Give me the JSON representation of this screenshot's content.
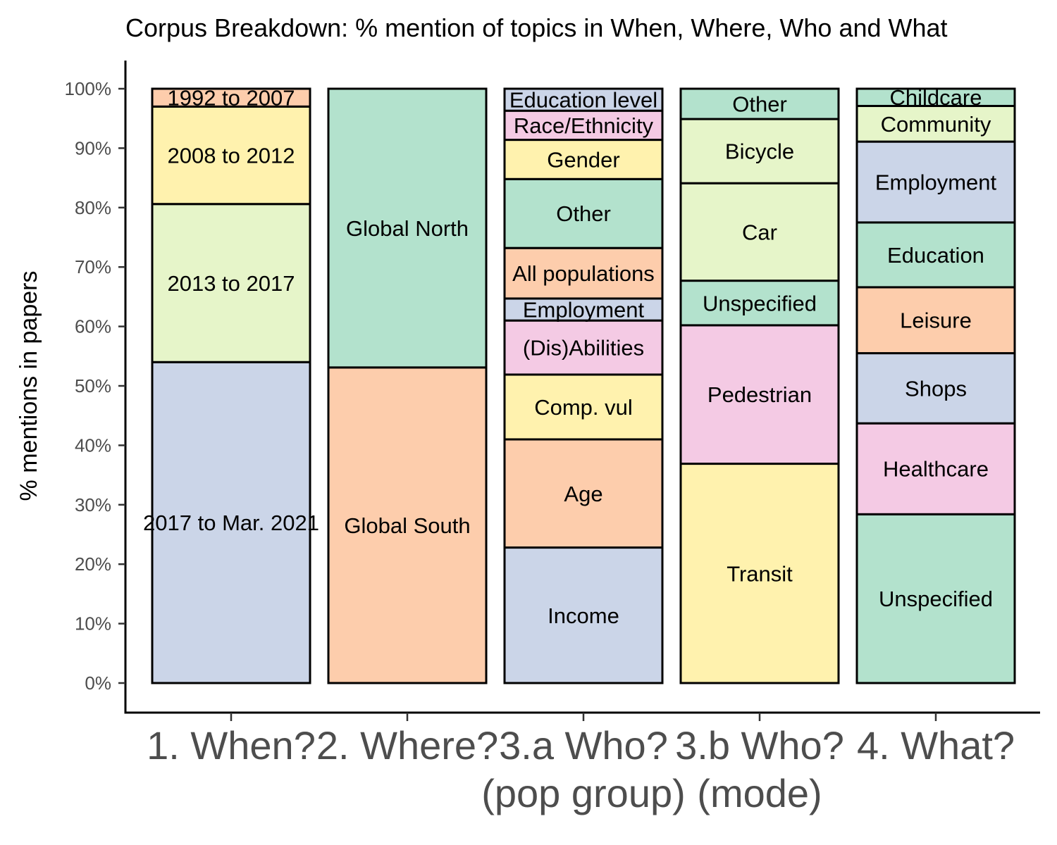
{
  "chart_data": {
    "type": "bar",
    "stacked": true,
    "title": "Corpus Breakdown: % mention of topics in When, Where, Who and What",
    "xlabel": "",
    "ylabel": "% mentions in papers",
    "ylim": [
      0,
      100
    ],
    "yticks": [
      "0%",
      "10%",
      "20%",
      "30%",
      "40%",
      "50%",
      "60%",
      "70%",
      "80%",
      "90%",
      "100%"
    ],
    "grid": false,
    "legend": "none",
    "categories": [
      [
        "1. When?"
      ],
      [
        "2. Where?"
      ],
      [
        "3.a Who?",
        "(pop group)"
      ],
      [
        "3.b Who?",
        "(mode)"
      ],
      [
        "4. What?"
      ]
    ],
    "bars": [
      {
        "segments": [
          {
            "label": "2017 to Mar. 2021",
            "value": 54.0,
            "color": "#cbd5e8"
          },
          {
            "label": "2013 to 2017",
            "value": 26.6,
            "color": "#e6f5c9"
          },
          {
            "label": "2008 to 2012",
            "value": 16.4,
            "color": "#fff2ae"
          },
          {
            "label": "1992 to 2007",
            "value": 3.0,
            "color": "#fdcdac"
          }
        ]
      },
      {
        "segments": [
          {
            "label": "Global South",
            "value": 53.1,
            "color": "#fdcdac"
          },
          {
            "label": "Global North",
            "value": 46.9,
            "color": "#b3e2cd"
          }
        ]
      },
      {
        "segments": [
          {
            "label": "Income",
            "value": 22.8,
            "color": "#cbd5e8"
          },
          {
            "label": "Age",
            "value": 18.2,
            "color": "#fdcdac"
          },
          {
            "label": "Comp. vul",
            "value": 10.9,
            "color": "#fff2ae"
          },
          {
            "label": "(Dis)Abilities",
            "value": 9.1,
            "color": "#f4cae4"
          },
          {
            "label": "Employment",
            "value": 3.7,
            "color": "#cbd5e8"
          },
          {
            "label": "All populations",
            "value": 8.5,
            "color": "#fdcdac"
          },
          {
            "label": "Other",
            "value": 11.6,
            "color": "#b3e2cd"
          },
          {
            "label": "Gender",
            "value": 6.6,
            "color": "#fff2ae"
          },
          {
            "label": "Race/Ethnicity",
            "value": 4.9,
            "color": "#f4cae4"
          },
          {
            "label": "Education level",
            "value": 3.7,
            "color": "#cbd5e8"
          }
        ]
      },
      {
        "segments": [
          {
            "label": "Transit",
            "value": 36.9,
            "color": "#fff2ae"
          },
          {
            "label": "Pedestrian",
            "value": 23.3,
            "color": "#f4cae4"
          },
          {
            "label": "Unspecified",
            "value": 7.5,
            "color": "#b3e2cd"
          },
          {
            "label": "Car",
            "value": 16.4,
            "color": "#e6f5c9"
          },
          {
            "label": "Bicycle",
            "value": 10.8,
            "color": "#e6f5c9"
          },
          {
            "label": "Other",
            "value": 5.1,
            "color": "#b3e2cd"
          }
        ]
      },
      {
        "segments": [
          {
            "label": "Unspecified",
            "value": 28.4,
            "color": "#b3e2cd"
          },
          {
            "label": "Healthcare",
            "value": 15.3,
            "color": "#f4cae4"
          },
          {
            "label": "Shops",
            "value": 11.8,
            "color": "#cbd5e8"
          },
          {
            "label": "Leisure",
            "value": 11.1,
            "color": "#fdcdac"
          },
          {
            "label": "Education",
            "value": 10.9,
            "color": "#b3e2cd"
          },
          {
            "label": "Employment",
            "value": 13.6,
            "color": "#cbd5e8"
          },
          {
            "label": "Community",
            "value": 6.0,
            "color": "#e6f5c9"
          },
          {
            "label": "Childcare",
            "value": 2.9,
            "color": "#b3e2cd"
          }
        ]
      }
    ]
  }
}
